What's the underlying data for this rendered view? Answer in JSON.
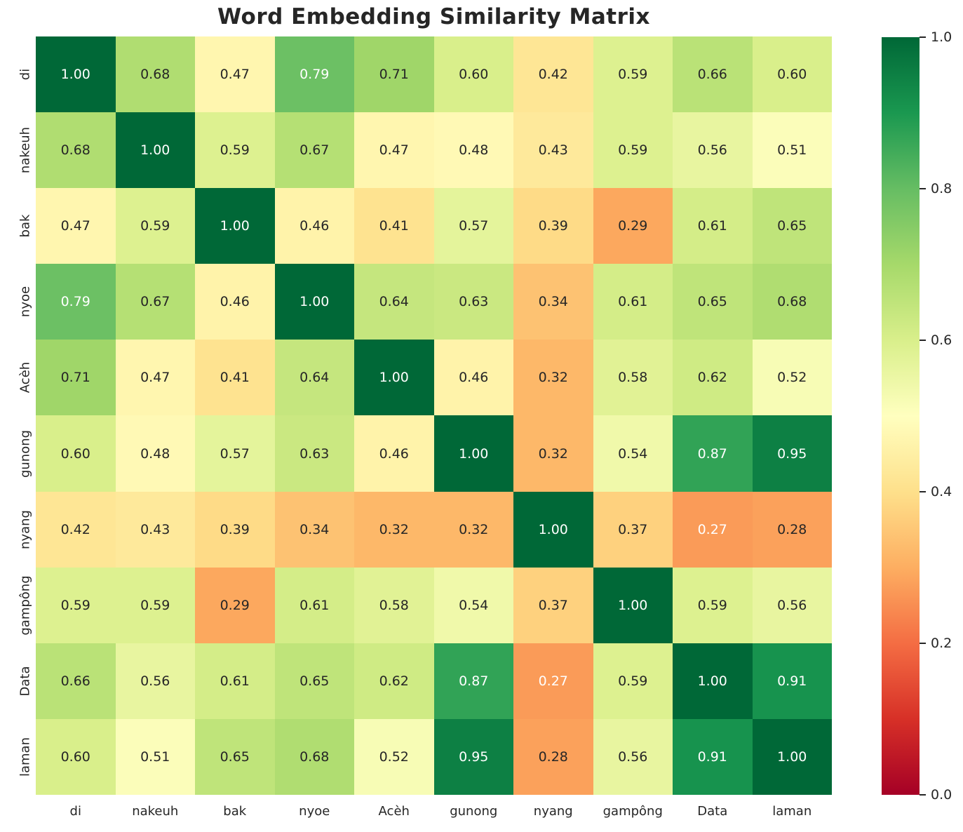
{
  "chart_data": {
    "type": "heatmap",
    "title": "Word Embedding Similarity Matrix",
    "labels": [
      "di",
      "nakeuh",
      "bak",
      "nyoe",
      "Acèh",
      "gunong",
      "nyang",
      "gampông",
      "Data",
      "laman"
    ],
    "matrix": [
      [
        1.0,
        0.68,
        0.47,
        0.79,
        0.71,
        0.6,
        0.42,
        0.59,
        0.66,
        0.6
      ],
      [
        0.68,
        1.0,
        0.59,
        0.67,
        0.47,
        0.48,
        0.43,
        0.59,
        0.56,
        0.51
      ],
      [
        0.47,
        0.59,
        1.0,
        0.46,
        0.41,
        0.57,
        0.39,
        0.29,
        0.61,
        0.65
      ],
      [
        0.79,
        0.67,
        0.46,
        1.0,
        0.64,
        0.63,
        0.34,
        0.61,
        0.65,
        0.68
      ],
      [
        0.71,
        0.47,
        0.41,
        0.64,
        1.0,
        0.46,
        0.32,
        0.58,
        0.62,
        0.52
      ],
      [
        0.6,
        0.48,
        0.57,
        0.63,
        0.46,
        1.0,
        0.32,
        0.54,
        0.87,
        0.95
      ],
      [
        0.42,
        0.43,
        0.39,
        0.34,
        0.32,
        0.32,
        1.0,
        0.37,
        0.27,
        0.28
      ],
      [
        0.59,
        0.59,
        0.29,
        0.61,
        0.58,
        0.54,
        0.37,
        1.0,
        0.59,
        0.56
      ],
      [
        0.66,
        0.56,
        0.61,
        0.65,
        0.62,
        0.87,
        0.27,
        0.59,
        1.0,
        0.91
      ],
      [
        0.6,
        0.51,
        0.65,
        0.68,
        0.52,
        0.95,
        0.28,
        0.56,
        0.91,
        1.0
      ]
    ],
    "value_decimals": 2,
    "vmin": 0.0,
    "vmax": 1.0,
    "grid": false,
    "legend_position": "colorbar-right",
    "colormap": {
      "name": "RdYlGn",
      "anchors": [
        {
          "pos": 0.0,
          "color": "#a50026"
        },
        {
          "pos": 0.1,
          "color": "#d73027"
        },
        {
          "pos": 0.2,
          "color": "#f46d43"
        },
        {
          "pos": 0.3,
          "color": "#fdae61"
        },
        {
          "pos": 0.4,
          "color": "#fee08b"
        },
        {
          "pos": 0.5,
          "color": "#ffffbf"
        },
        {
          "pos": 0.6,
          "color": "#d9ef8b"
        },
        {
          "pos": 0.7,
          "color": "#a6d96a"
        },
        {
          "pos": 0.8,
          "color": "#66bd63"
        },
        {
          "pos": 0.9,
          "color": "#1a9850"
        },
        {
          "pos": 1.0,
          "color": "#006837"
        }
      ]
    },
    "colorbar_ticks": [
      {
        "label": "1.0",
        "value": 1.0
      },
      {
        "label": "0.8",
        "value": 0.8
      },
      {
        "label": "0.6",
        "value": 0.6
      },
      {
        "label": "0.4",
        "value": 0.4
      },
      {
        "label": "0.2",
        "value": 0.2
      },
      {
        "label": "0.0",
        "value": 0.0
      }
    ],
    "annotation_text_light": "#ffffff",
    "annotation_text_dark": "#262626",
    "title_color": "#262626"
  }
}
